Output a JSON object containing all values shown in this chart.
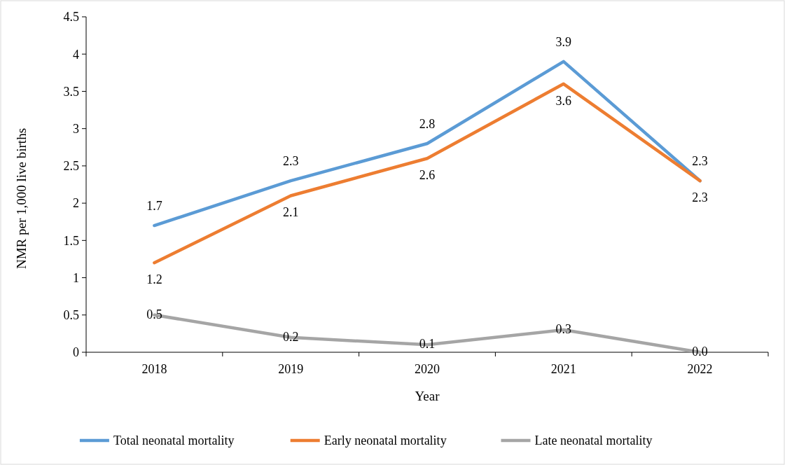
{
  "chart_data": {
    "type": "line",
    "xlabel": "Year",
    "ylabel": "NMR per 1,000 live births",
    "categories": [
      "2018",
      "2019",
      "2020",
      "2021",
      "2022"
    ],
    "series": [
      {
        "name": "Total neonatal mortality",
        "color": "#5b9bd5",
        "values": [
          1.7,
          2.3,
          2.8,
          3.9,
          2.3
        ],
        "value_labels": [
          "1.7",
          "2.3",
          "2.8",
          "3.9",
          "2.3"
        ]
      },
      {
        "name": "Early neonatal mortality",
        "color": "#ed7d31",
        "values": [
          1.2,
          2.1,
          2.6,
          3.6,
          2.3
        ],
        "value_labels": [
          "1.2",
          "2.1",
          "2.6",
          "3.6",
          "2.3"
        ]
      },
      {
        "name": "Late neonatal mortality",
        "color": "#a5a5a5",
        "values": [
          0.5,
          0.2,
          0.1,
          0.3,
          0
        ],
        "value_labels": [
          "0.5",
          "0.2",
          "0.1",
          "0.3",
          "0.0"
        ]
      }
    ],
    "ylim": [
      0,
      4.5
    ],
    "yticks": [
      0,
      0.5,
      1,
      1.5,
      2,
      2.5,
      3,
      3.5,
      4,
      4.5
    ],
    "grid": false,
    "legend": "bottom",
    "marker": "none",
    "line_style": "solid"
  }
}
